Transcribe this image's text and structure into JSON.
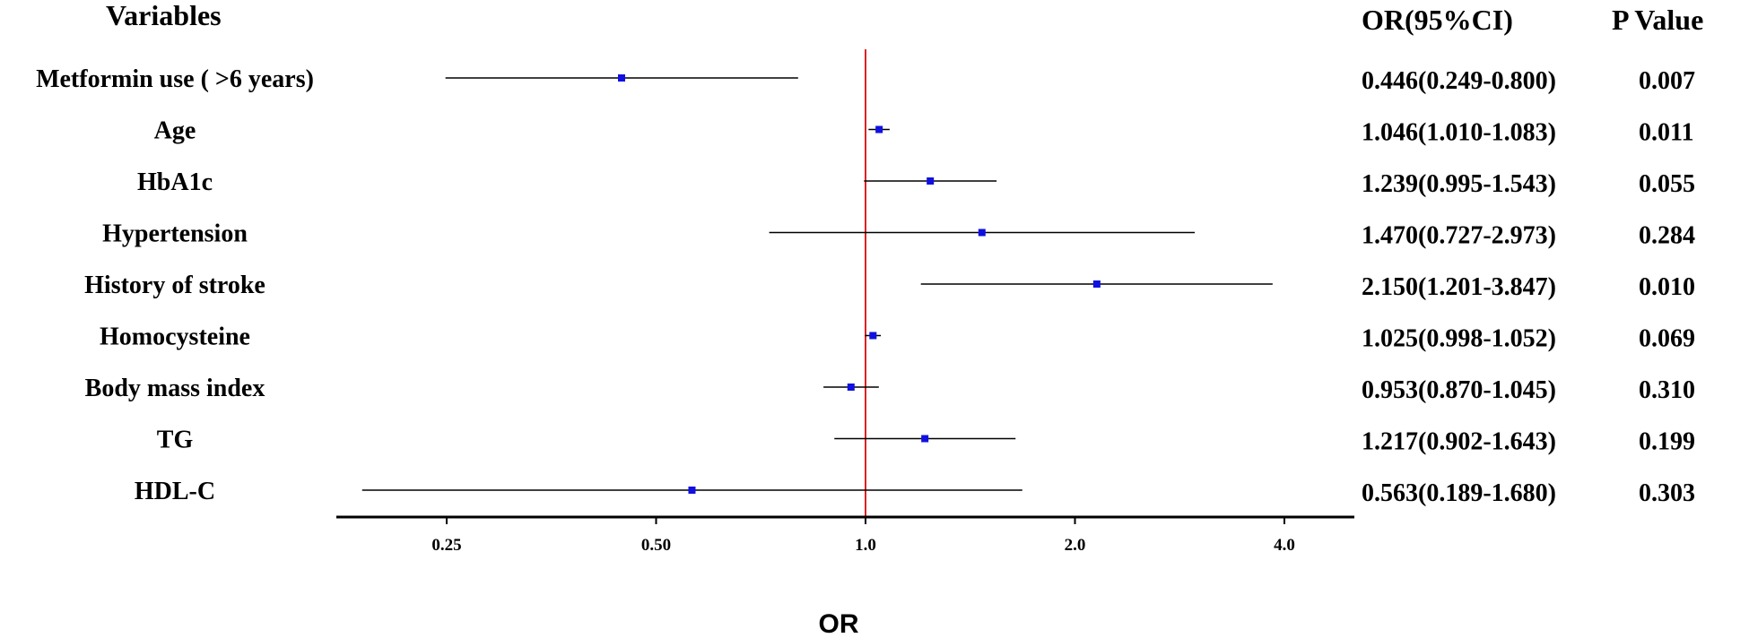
{
  "headers": {
    "variables": "Variables",
    "or_ci": "OR(95%CI)",
    "p_value": "P Value"
  },
  "chart_data": {
    "type": "forest",
    "xlabel": "OR",
    "x_scale": "log2",
    "xlim": [
      0.16,
      5.5
    ],
    "x_ticks": [
      0.25,
      0.5,
      1.0,
      2.0,
      4.0
    ],
    "x_tick_labels": [
      "0.25",
      "0.50",
      "1.0",
      "2.0",
      "4.0"
    ],
    "reference_line": 1.0,
    "colors": {
      "point": "#1010e0",
      "ci_line": "#000000",
      "reference_line": "#e02020",
      "axis": "#000000"
    },
    "rows": [
      {
        "label": "Metformin use ( >6 years)",
        "or": 0.446,
        "lower": 0.249,
        "upper": 0.8,
        "ci_text": "0.446(0.249-0.800)",
        "p_text": "0.007"
      },
      {
        "label": "Age",
        "or": 1.046,
        "lower": 1.01,
        "upper": 1.083,
        "ci_text": "1.046(1.010-1.083)",
        "p_text": "0.011"
      },
      {
        "label": "HbA1c",
        "or": 1.239,
        "lower": 0.995,
        "upper": 1.543,
        "ci_text": "1.239(0.995-1.543)",
        "p_text": "0.055"
      },
      {
        "label": "Hypertension",
        "or": 1.47,
        "lower": 0.727,
        "upper": 2.973,
        "ci_text": "1.470(0.727-2.973)",
        "p_text": "0.284"
      },
      {
        "label": "History of stroke",
        "or": 2.15,
        "lower": 1.201,
        "upper": 3.847,
        "ci_text": "2.150(1.201-3.847)",
        "p_text": "0.010"
      },
      {
        "label": "Homocysteine",
        "or": 1.025,
        "lower": 0.998,
        "upper": 1.052,
        "ci_text": "1.025(0.998-1.052)",
        "p_text": "0.069"
      },
      {
        "label": "Body mass index",
        "or": 0.953,
        "lower": 0.87,
        "upper": 1.045,
        "ci_text": "0.953(0.870-1.045)",
        "p_text": "0.310"
      },
      {
        "label": "TG",
        "or": 1.217,
        "lower": 0.902,
        "upper": 1.643,
        "ci_text": "1.217(0.902-1.643)",
        "p_text": "0.199"
      },
      {
        "label": "HDL-C",
        "or": 0.563,
        "lower": 0.189,
        "upper": 1.68,
        "ci_text": "0.563(0.189-1.680)",
        "p_text": "0.303"
      }
    ]
  }
}
